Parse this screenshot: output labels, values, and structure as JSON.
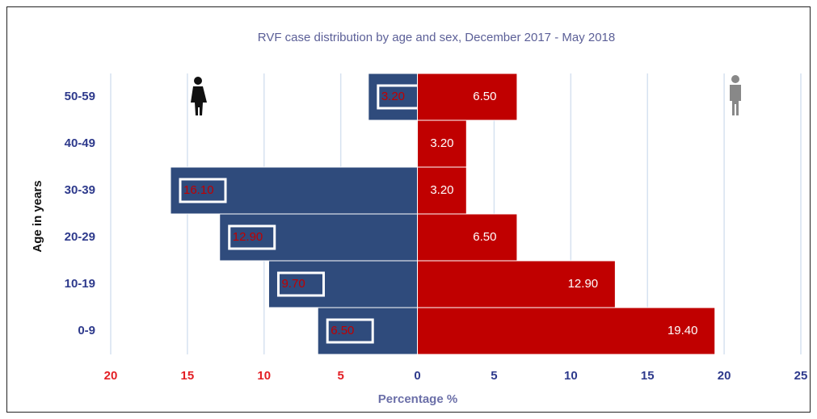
{
  "chart_data": {
    "type": "pyramid",
    "title": "RVF case distribution by age and sex, December 2017 - May 2018",
    "xlabel": "Percentage %",
    "ylabel": "Age in years",
    "categories": [
      "0-9",
      "10-19",
      "20-29",
      "30-39",
      "40-49",
      "50-59"
    ],
    "series": [
      {
        "color": "#2f4b7c",
        "values": [
          6.5,
          9.7,
          12.9,
          16.1,
          null,
          3.2
        ],
        "value_labels": [
          "6.50",
          "9.70",
          "12.90",
          "16.10",
          null,
          "3.20"
        ]
      },
      {
        "color": "#c00000",
        "values": [
          19.4,
          12.9,
          6.5,
          3.2,
          3.2,
          6.5
        ],
        "value_labels": [
          "19.40",
          "12.90",
          "6.50",
          "3.20",
          "3.20",
          "6.50"
        ]
      }
    ],
    "xlim": [
      -20,
      25
    ],
    "xticks": [
      {
        "value": -20,
        "label": "20"
      },
      {
        "value": -15,
        "label": "15"
      },
      {
        "value": -10,
        "label": "10"
      },
      {
        "value": -5,
        "label": "5"
      },
      0,
      5,
      10,
      15,
      20,
      25
    ],
    "grid": true
  }
}
